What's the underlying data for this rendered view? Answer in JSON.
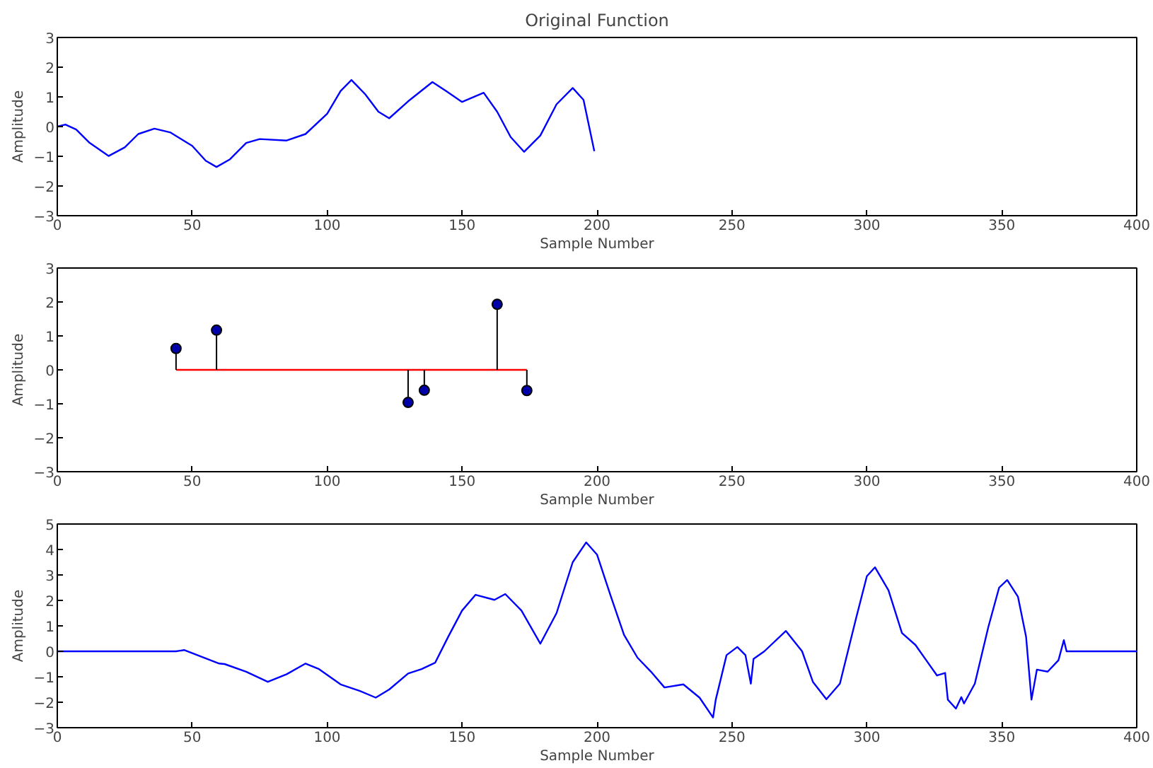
{
  "chart_data": [
    {
      "type": "line",
      "title": "Original Function",
      "xlabel": "Sample Number",
      "ylabel": "Amplitude",
      "xlim": [
        0,
        400
      ],
      "ylim": [
        -3,
        3
      ],
      "xticks": [
        0,
        50,
        100,
        150,
        200,
        250,
        300,
        350,
        400
      ],
      "yticks": [
        -3,
        -2,
        -1,
        0,
        1,
        2,
        3
      ],
      "grid": false,
      "series": [
        {
          "color": "#0000ff",
          "x": [
            0,
            3,
            7,
            12,
            19,
            25,
            30,
            36,
            42,
            50,
            55,
            59,
            64,
            70,
            75,
            85,
            92,
            100,
            105,
            109,
            114,
            119,
            123,
            130,
            139,
            144,
            150,
            158,
            163,
            168,
            173,
            179,
            185,
            191,
            195,
            199
          ],
          "values": [
            0,
            0.07,
            -0.1,
            -0.55,
            -0.99,
            -0.7,
            -0.25,
            -0.07,
            -0.2,
            -0.65,
            -1.15,
            -1.36,
            -1.1,
            -0.55,
            -0.42,
            -0.47,
            -0.25,
            0.43,
            1.2,
            1.57,
            1.1,
            0.5,
            0.28,
            0.85,
            1.5,
            1.2,
            0.83,
            1.14,
            0.5,
            -0.35,
            -0.85,
            -0.3,
            0.75,
            1.3,
            0.9,
            -0.83
          ]
        }
      ]
    },
    {
      "type": "lollipop",
      "xlabel": "Sample Number",
      "ylabel": "Amplitude",
      "xlim": [
        0,
        400
      ],
      "ylim": [
        -3,
        3
      ],
      "xticks": [
        0,
        50,
        100,
        150,
        200,
        250,
        300,
        350,
        400
      ],
      "yticks": [
        -3,
        -2,
        -1,
        0,
        1,
        2,
        3
      ],
      "grid": false,
      "marker": "circle",
      "series": [
        {
          "type": "line",
          "color": "#ff0000",
          "marker": "none",
          "x": [
            44,
            174
          ],
          "values": [
            0,
            0
          ]
        },
        {
          "color": "#0000aa",
          "x": [
            44,
            59,
            130,
            136,
            163,
            174
          ],
          "values": [
            0.63,
            1.17,
            -0.96,
            -0.6,
            1.93,
            -0.61
          ]
        }
      ]
    },
    {
      "type": "line",
      "xlabel": "Sample Number",
      "ylabel": "Amplitude",
      "xlim": [
        0,
        400
      ],
      "ylim": [
        -3,
        5
      ],
      "xticks": [
        0,
        50,
        100,
        150,
        200,
        250,
        300,
        350,
        400
      ],
      "yticks": [
        -3,
        -2,
        -1,
        0,
        1,
        2,
        3,
        4,
        5
      ],
      "grid": false,
      "series": [
        {
          "color": "#0000ff",
          "x": [
            0,
            44,
            47,
            60,
            62,
            70,
            78,
            85,
            92,
            97,
            105,
            112,
            118,
            123,
            130,
            135,
            140,
            145,
            150,
            155,
            162,
            166,
            172,
            179,
            185,
            191,
            196,
            200,
            205,
            210,
            215,
            220,
            225,
            232,
            238,
            243,
            244,
            248,
            252,
            255,
            257,
            258,
            262,
            270,
            276,
            280,
            285,
            290,
            296,
            300,
            303,
            308,
            313,
            318,
            322,
            326,
            329,
            330,
            333,
            335,
            336,
            340,
            345,
            349,
            352,
            356,
            359,
            361,
            363,
            367,
            371,
            373,
            374,
            400
          ],
          "values": [
            0,
            0,
            0.05,
            -0.48,
            -0.5,
            -0.8,
            -1.2,
            -0.9,
            -0.48,
            -0.7,
            -1.3,
            -1.55,
            -1.82,
            -1.5,
            -0.87,
            -0.7,
            -0.45,
            0.6,
            1.6,
            2.22,
            2.02,
            2.25,
            1.6,
            0.3,
            1.5,
            3.5,
            4.28,
            3.8,
            2.2,
            0.65,
            -0.25,
            -0.8,
            -1.42,
            -1.3,
            -1.82,
            -2.6,
            -1.9,
            -0.15,
            0.17,
            -0.15,
            -1.27,
            -0.3,
            0,
            0.8,
            0,
            -1.2,
            -1.88,
            -1.27,
            1.3,
            2.95,
            3.3,
            2.4,
            0.72,
            0.25,
            -0.35,
            -0.95,
            -0.85,
            -1.9,
            -2.25,
            -1.8,
            -2.05,
            -1.27,
            0.95,
            2.5,
            2.8,
            2.14,
            0.57,
            -1.9,
            -0.72,
            -0.8,
            -0.35,
            0.44,
            0,
            0
          ]
        }
      ]
    }
  ]
}
